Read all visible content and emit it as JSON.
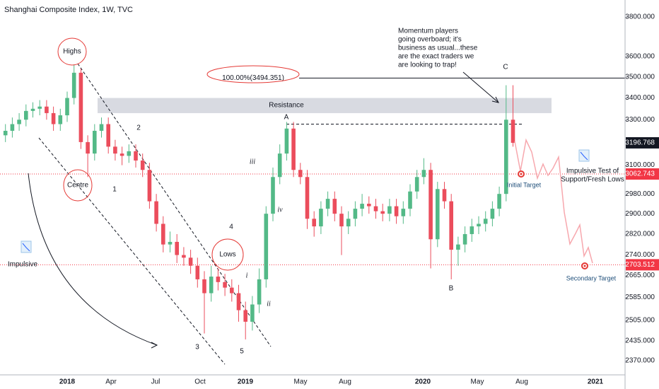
{
  "chart_data": {
    "type": "candlestick",
    "title": "Shanghai Composite Index, 1W, TVC",
    "open": [
      3230,
      3250,
      3280,
      3300,
      3340,
      3350,
      3360,
      3330,
      3280,
      3320,
      3400,
      3520,
      3200,
      3150,
      3250,
      3280,
      3180,
      3150,
      3140,
      3160,
      3120,
      3080,
      2950,
      2860,
      2780,
      2790,
      2740,
      2730,
      2700,
      2650,
      2600,
      2660,
      2640,
      2620,
      2600,
      2540,
      2500,
      2560,
      2650,
      2900,
      3050,
      3150,
      3260,
      3080,
      3050,
      2880,
      2850,
      2920,
      2960,
      2900,
      2850,
      2880,
      2920,
      2940,
      2930,
      2910,
      2900,
      2930,
      2890,
      2920,
      2990,
      3050,
      3080,
      2800,
      3000,
      2950,
      2760,
      2780,
      2820,
      2850,
      2860,
      2880,
      2920,
      2980,
      3300
    ],
    "high": [
      3280,
      3310,
      3330,
      3370,
      3380,
      3390,
      3390,
      3360,
      3350,
      3430,
      3560,
      3540,
      3230,
      3280,
      3310,
      3310,
      3210,
      3180,
      3190,
      3190,
      3150,
      3110,
      2980,
      2890,
      2830,
      2820,
      2770,
      2760,
      2730,
      2680,
      2700,
      2690,
      2670,
      2650,
      2630,
      2570,
      2590,
      2690,
      2930,
      3090,
      3190,
      3290,
      3290,
      3110,
      3080,
      2910,
      2950,
      2990,
      2990,
      2930,
      2910,
      2950,
      2980,
      2970,
      2960,
      2940,
      2960,
      2960,
      2950,
      3020,
      3080,
      3130,
      3110,
      3030,
      3030,
      2980,
      2810,
      2850,
      2880,
      2890,
      2910,
      2950,
      3010,
      3460,
      3460
    ],
    "low": [
      3200,
      3220,
      3250,
      3270,
      3310,
      3320,
      3300,
      3250,
      3250,
      3290,
      3370,
      3170,
      3050,
      3120,
      3220,
      3150,
      3120,
      3100,
      3110,
      3090,
      3050,
      2920,
      2830,
      2750,
      2750,
      2710,
      2700,
      2670,
      2620,
      2460,
      2570,
      2610,
      2590,
      2570,
      2500,
      2440,
      2470,
      2530,
      2620,
      2870,
      3020,
      3120,
      3050,
      3020,
      2840,
      2810,
      2820,
      2890,
      2870,
      2740,
      2820,
      2850,
      2890,
      2900,
      2880,
      2870,
      2870,
      2860,
      2860,
      2890,
      2960,
      3020,
      2690,
      2770,
      2920,
      2650,
      2700,
      2750,
      2790,
      2820,
      2830,
      2850,
      2890,
      2950,
      3180
    ],
    "close": [
      3250,
      3280,
      3300,
      3340,
      3350,
      3360,
      3330,
      3280,
      3320,
      3400,
      3520,
      3200,
      3150,
      3250,
      3280,
      3180,
      3150,
      3140,
      3160,
      3120,
      3080,
      2950,
      2860,
      2780,
      2790,
      2740,
      2730,
      2700,
      2650,
      2600,
      2660,
      2640,
      2620,
      2600,
      2540,
      2500,
      2560,
      2650,
      2900,
      3050,
      3150,
      3260,
      3080,
      3050,
      2880,
      2850,
      2920,
      2960,
      2900,
      2850,
      2880,
      2920,
      2940,
      2930,
      2910,
      2900,
      2930,
      2890,
      2920,
      2990,
      3050,
      3080,
      2800,
      3000,
      2950,
      2760,
      2780,
      2820,
      2850,
      2860,
      2880,
      2920,
      2980,
      3300,
      3196.768
    ],
    "up_color": "#53b987",
    "down_color": "#eb4d5c",
    "log_scale": true,
    "ylim": [
      2324,
      3890
    ],
    "yticks": [
      {
        "value": 3800,
        "label": "3800.000"
      },
      {
        "value": 3600,
        "label": "3600.000"
      },
      {
        "value": 3500,
        "label": "3500.000"
      },
      {
        "value": 3400,
        "label": "3400.000"
      },
      {
        "value": 3300,
        "label": "3300.000"
      },
      {
        "value": 3100,
        "label": "3100.000"
      },
      {
        "value": 2980,
        "label": "2980.000"
      },
      {
        "value": 2900,
        "label": "2900.000"
      },
      {
        "value": 2820,
        "label": "2820.000"
      },
      {
        "value": 2740,
        "label": "2740.000"
      },
      {
        "value": 2665,
        "label": "2665.000"
      },
      {
        "value": 2585,
        "label": "2585.000"
      },
      {
        "value": 2505,
        "label": "2505.000"
      },
      {
        "value": 2435,
        "label": "2435.000"
      },
      {
        "value": 2370,
        "label": "2370.000"
      }
    ],
    "x_labels": [
      "2018",
      "Apr",
      "Jul",
      "Oct",
      "2019",
      "May",
      "Aug",
      "2020",
      "May",
      "Aug",
      "2021"
    ],
    "price_labels": [
      {
        "value": 3196.768,
        "label": "3196.768",
        "color": "#131722"
      },
      {
        "value": 3062.743,
        "label": "3062.743",
        "color": "#f23645"
      },
      {
        "value": 2703.512,
        "label": "2703.512",
        "color": "#f23645"
      }
    ],
    "fib_level": {
      "value": 3494.351,
      "label": "100.00%(3494.351)"
    },
    "resistance_zone": [
      3330,
      3400
    ],
    "wave_a_level": 3280,
    "wave_labels": [
      "1",
      "2",
      "3",
      "4",
      "5",
      "A",
      "B",
      "C",
      "i",
      "ii",
      "iii",
      "iv"
    ],
    "annotations": {
      "highs": "Highs",
      "centre": "Centre",
      "lows": "Lows",
      "resistance": "Resistance",
      "impulsive": "Impulsive",
      "momentum_note": [
        "Momentum players",
        "going overboard; it's",
        "business as usual...these",
        "are the exact traders we",
        "are looking to trap!"
      ],
      "impulsive_test": [
        "Impulsive Test of",
        "Support/Fresh Lows"
      ],
      "initial_target": "Initial Target",
      "secondary_target": "Secondary Target"
    }
  }
}
